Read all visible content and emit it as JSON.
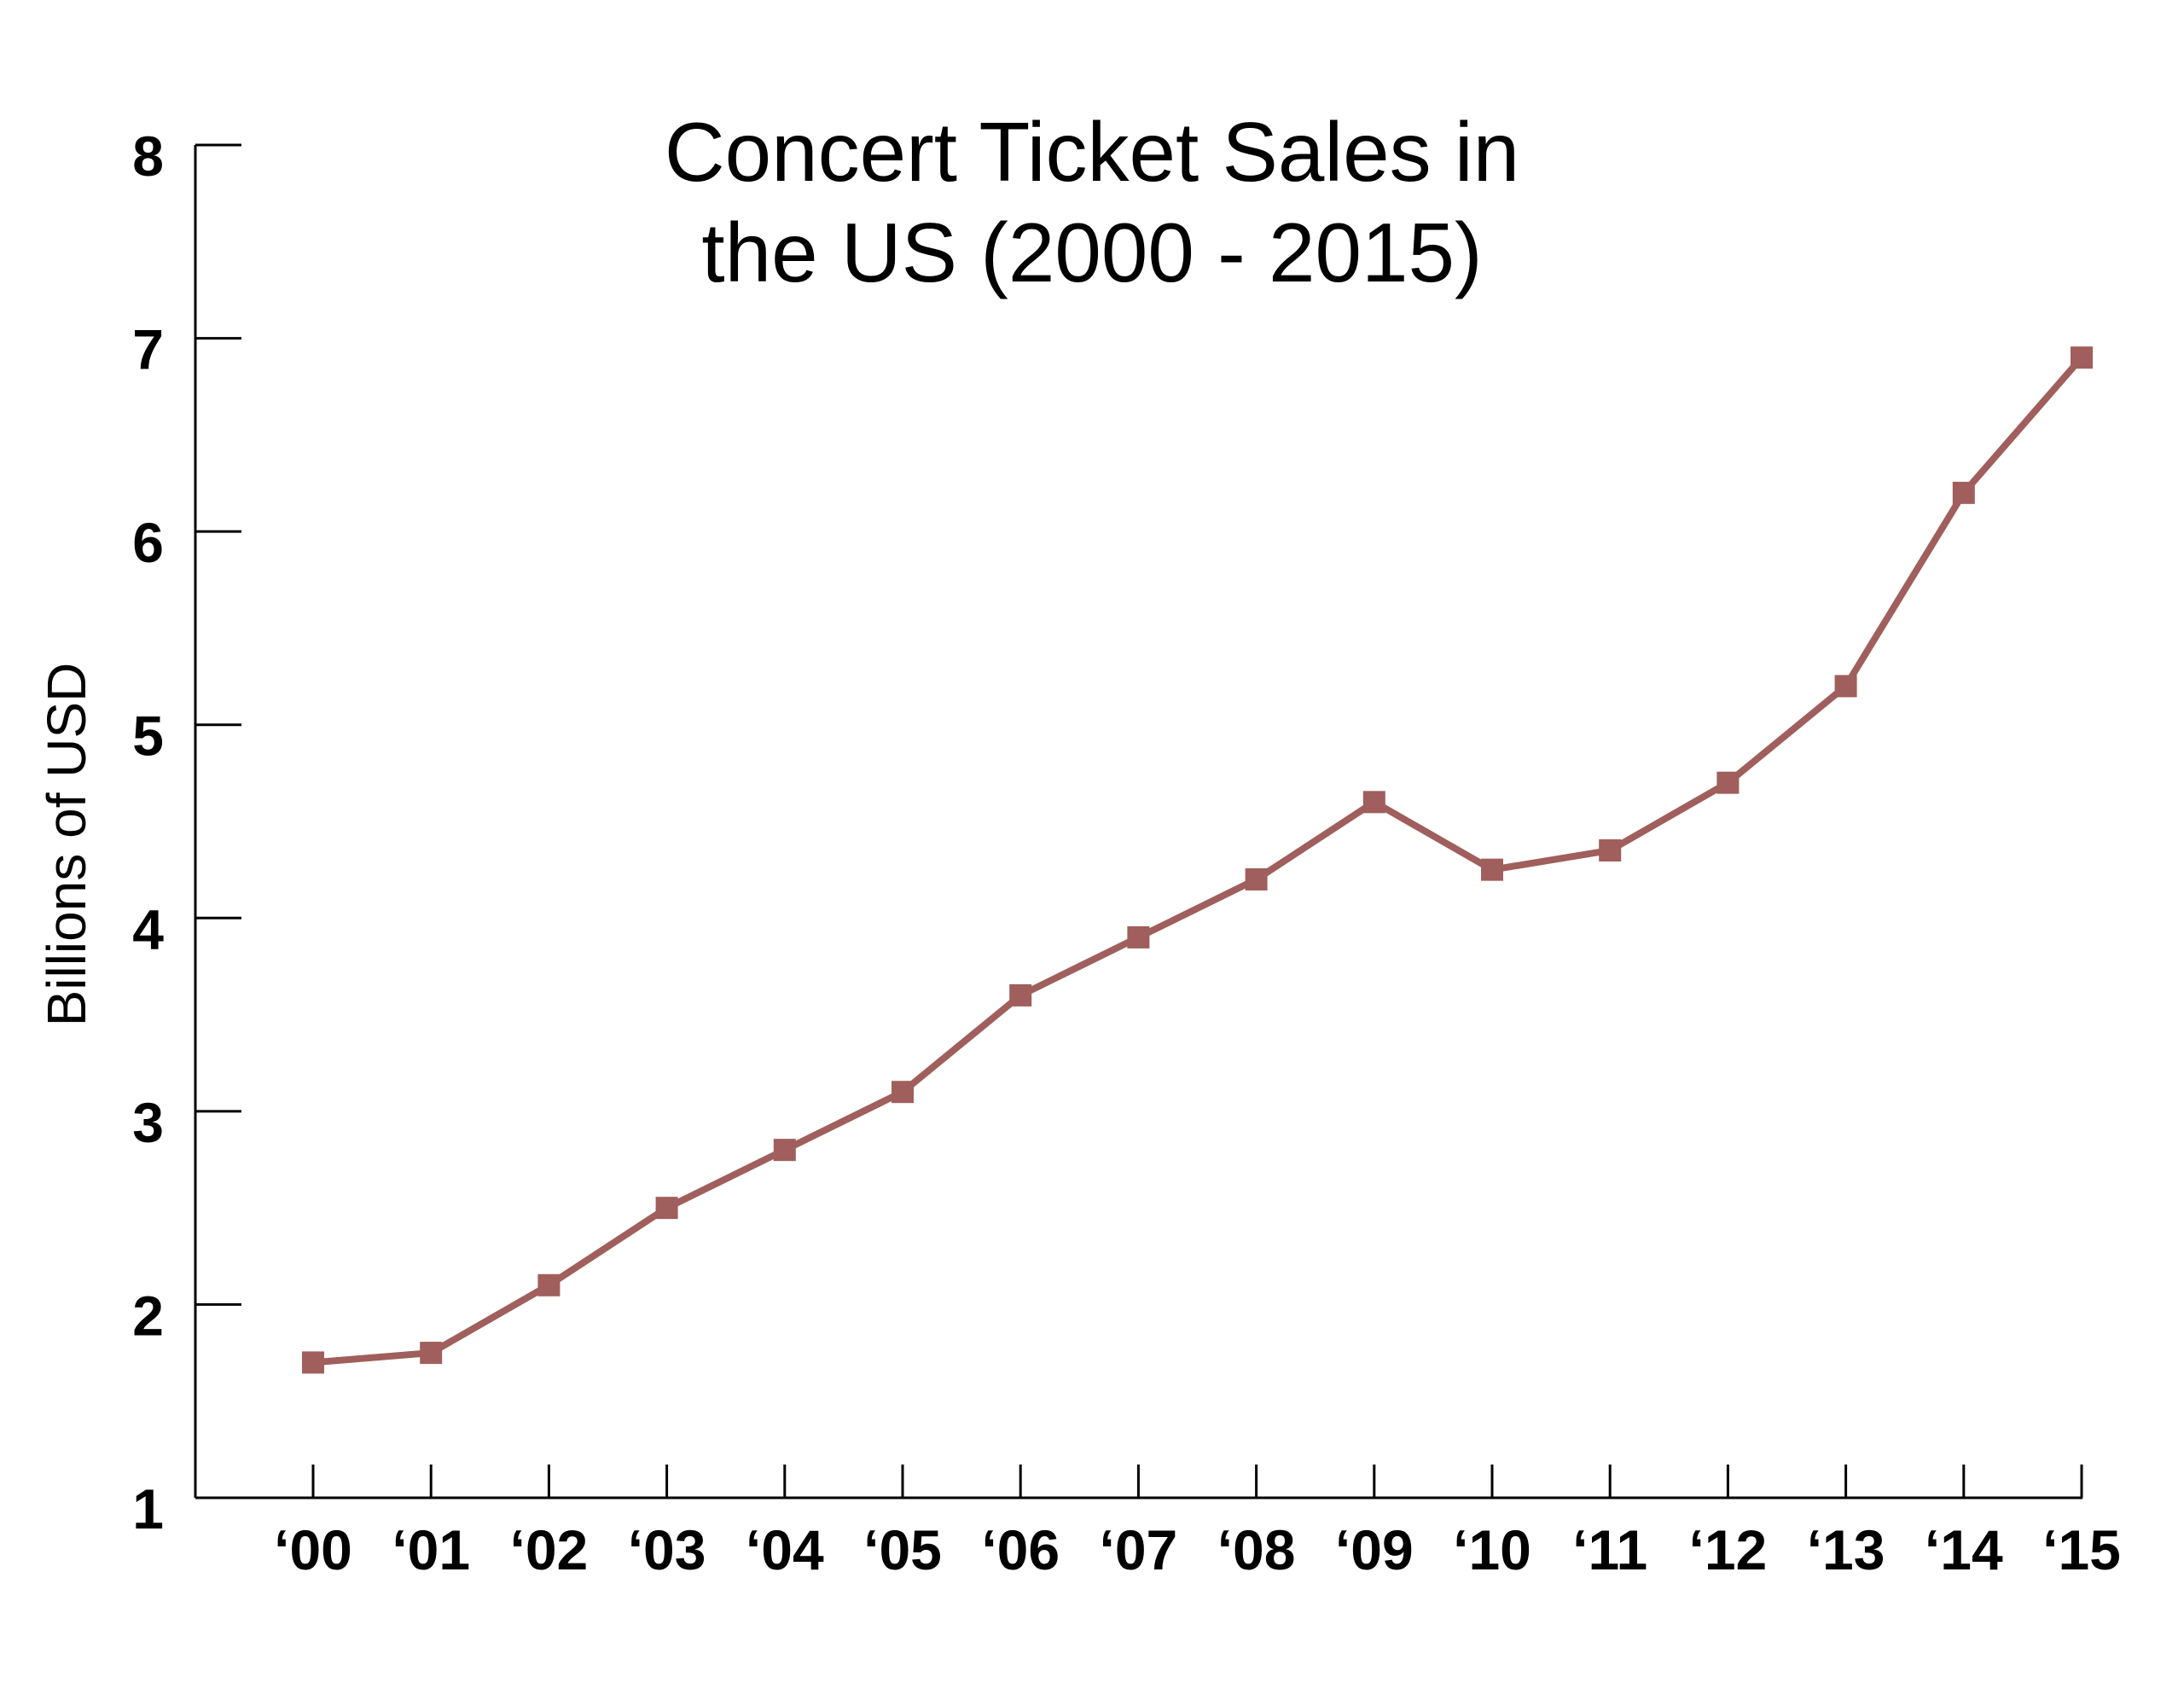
{
  "chart_data": {
    "type": "line",
    "title": [
      "Concert Ticket Sales in",
      "the US (2000 - 2015)"
    ],
    "xlabel": "",
    "ylabel": "Billions of USD",
    "categories": [
      "‘00",
      "‘01",
      "‘02",
      "‘03",
      "‘04",
      "‘05",
      "‘06",
      "‘07",
      "‘08",
      "‘09",
      "‘10",
      "‘11",
      "‘12",
      "‘13",
      "‘14",
      "‘15"
    ],
    "series": [
      {
        "name": "Concert Ticket Sales",
        "color": "#A05F5C",
        "marker": "square",
        "values": [
          1.7,
          1.75,
          2.1,
          2.5,
          2.8,
          3.1,
          3.6,
          3.9,
          4.2,
          4.6,
          4.25,
          4.35,
          4.7,
          5.2,
          6.2,
          6.9
        ]
      }
    ],
    "ylim": [
      1,
      8
    ],
    "yticks": [
      1,
      2,
      3,
      4,
      5,
      6,
      7,
      8
    ],
    "grid": false,
    "legend": "none"
  }
}
